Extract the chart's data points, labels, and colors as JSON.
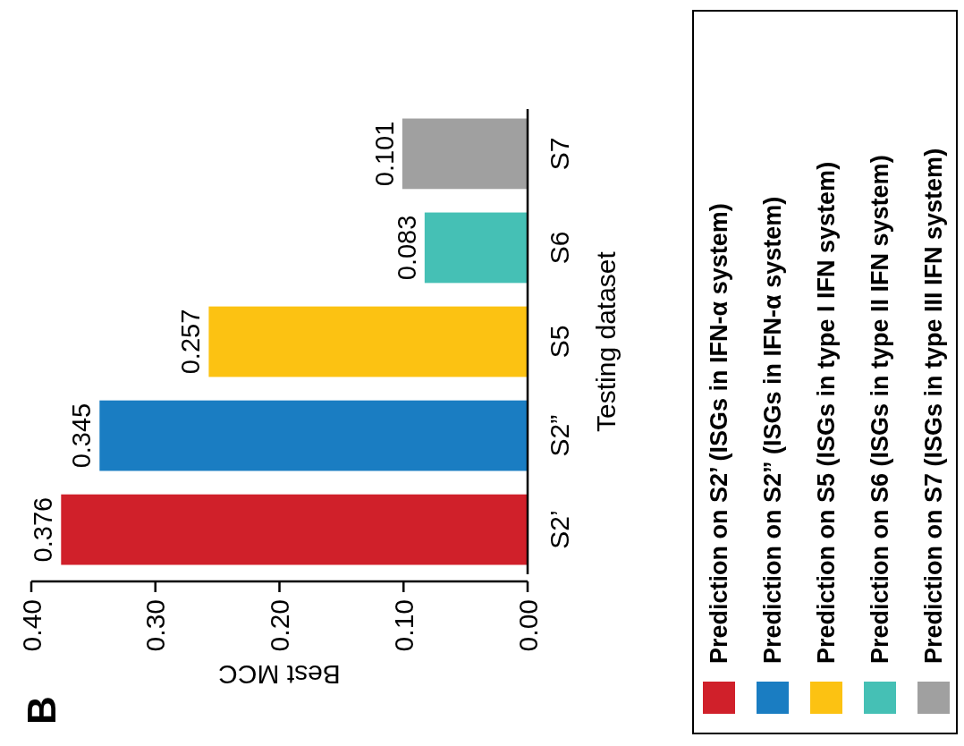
{
  "chart_data": {
    "type": "bar",
    "orientation": "horizontal",
    "xlabel": "Best MCC",
    "ylabel": "Testing dataset",
    "annotations": [
      "B"
    ],
    "categories": [
      "S7",
      "S6",
      "S5",
      "S2”",
      "S2’"
    ],
    "series": [
      {
        "name": "Prediction on S2’ (ISGs in IFN-α system)",
        "color": "#d0202a",
        "values": [
          null,
          null,
          null,
          null,
          0.376
        ]
      },
      {
        "name": "Prediction on S2” (ISGs in IFN-α system)",
        "color": "#1a7dc2",
        "values": [
          null,
          null,
          null,
          0.345,
          null
        ]
      },
      {
        "name": "Prediction on S5 (ISGs in type I IFN system)",
        "color": "#fcc212",
        "values": [
          null,
          null,
          0.257,
          null,
          null
        ]
      },
      {
        "name": "Prediction on S6 (ISGs in type II IFN system)",
        "color": "#45c0b5",
        "values": [
          null,
          0.083,
          null,
          null,
          null
        ]
      },
      {
        "name": "Prediction on S7 (ISGs in type III IFN system)",
        "color": "#a0a0a0",
        "values": [
          0.101,
          null,
          null,
          null,
          null
        ]
      }
    ],
    "xlim": [
      0.4,
      0
    ],
    "xticks": [
      {
        "value": 0.4,
        "label": "0.40"
      },
      {
        "value": 0.3,
        "label": "0.30"
      },
      {
        "value": 0.2,
        "label": "0.20"
      },
      {
        "value": 0.1,
        "label": "0.10"
      },
      {
        "value": 0,
        "label": "0.00"
      }
    ],
    "data_labels": true,
    "legend": "right",
    "grid": false
  }
}
